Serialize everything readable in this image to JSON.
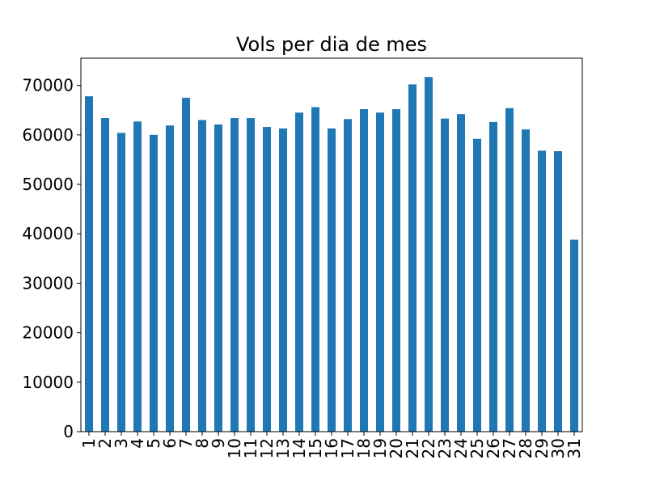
{
  "chart_data": {
    "type": "bar",
    "title": "Vols per dia de mes",
    "xlabel": "",
    "ylabel": "",
    "categories": [
      "1",
      "2",
      "3",
      "4",
      "5",
      "6",
      "7",
      "8",
      "9",
      "10",
      "11",
      "12",
      "13",
      "14",
      "15",
      "16",
      "17",
      "18",
      "19",
      "20",
      "21",
      "22",
      "23",
      "24",
      "25",
      "26",
      "27",
      "28",
      "29",
      "30",
      "31"
    ],
    "values": [
      67800,
      63400,
      60400,
      62700,
      60000,
      61900,
      67500,
      63000,
      62100,
      63400,
      63400,
      61600,
      61300,
      64500,
      65600,
      61300,
      63200,
      65200,
      64500,
      65200,
      70200,
      71700,
      63300,
      64200,
      59200,
      62600,
      65400,
      61100,
      56800,
      56700,
      38800
    ],
    "ylim": [
      0,
      75500
    ],
    "yticks": [
      0,
      10000,
      20000,
      30000,
      40000,
      50000,
      60000,
      70000
    ],
    "bar_color": "#1f77b4",
    "grid": false,
    "legend": "none"
  }
}
